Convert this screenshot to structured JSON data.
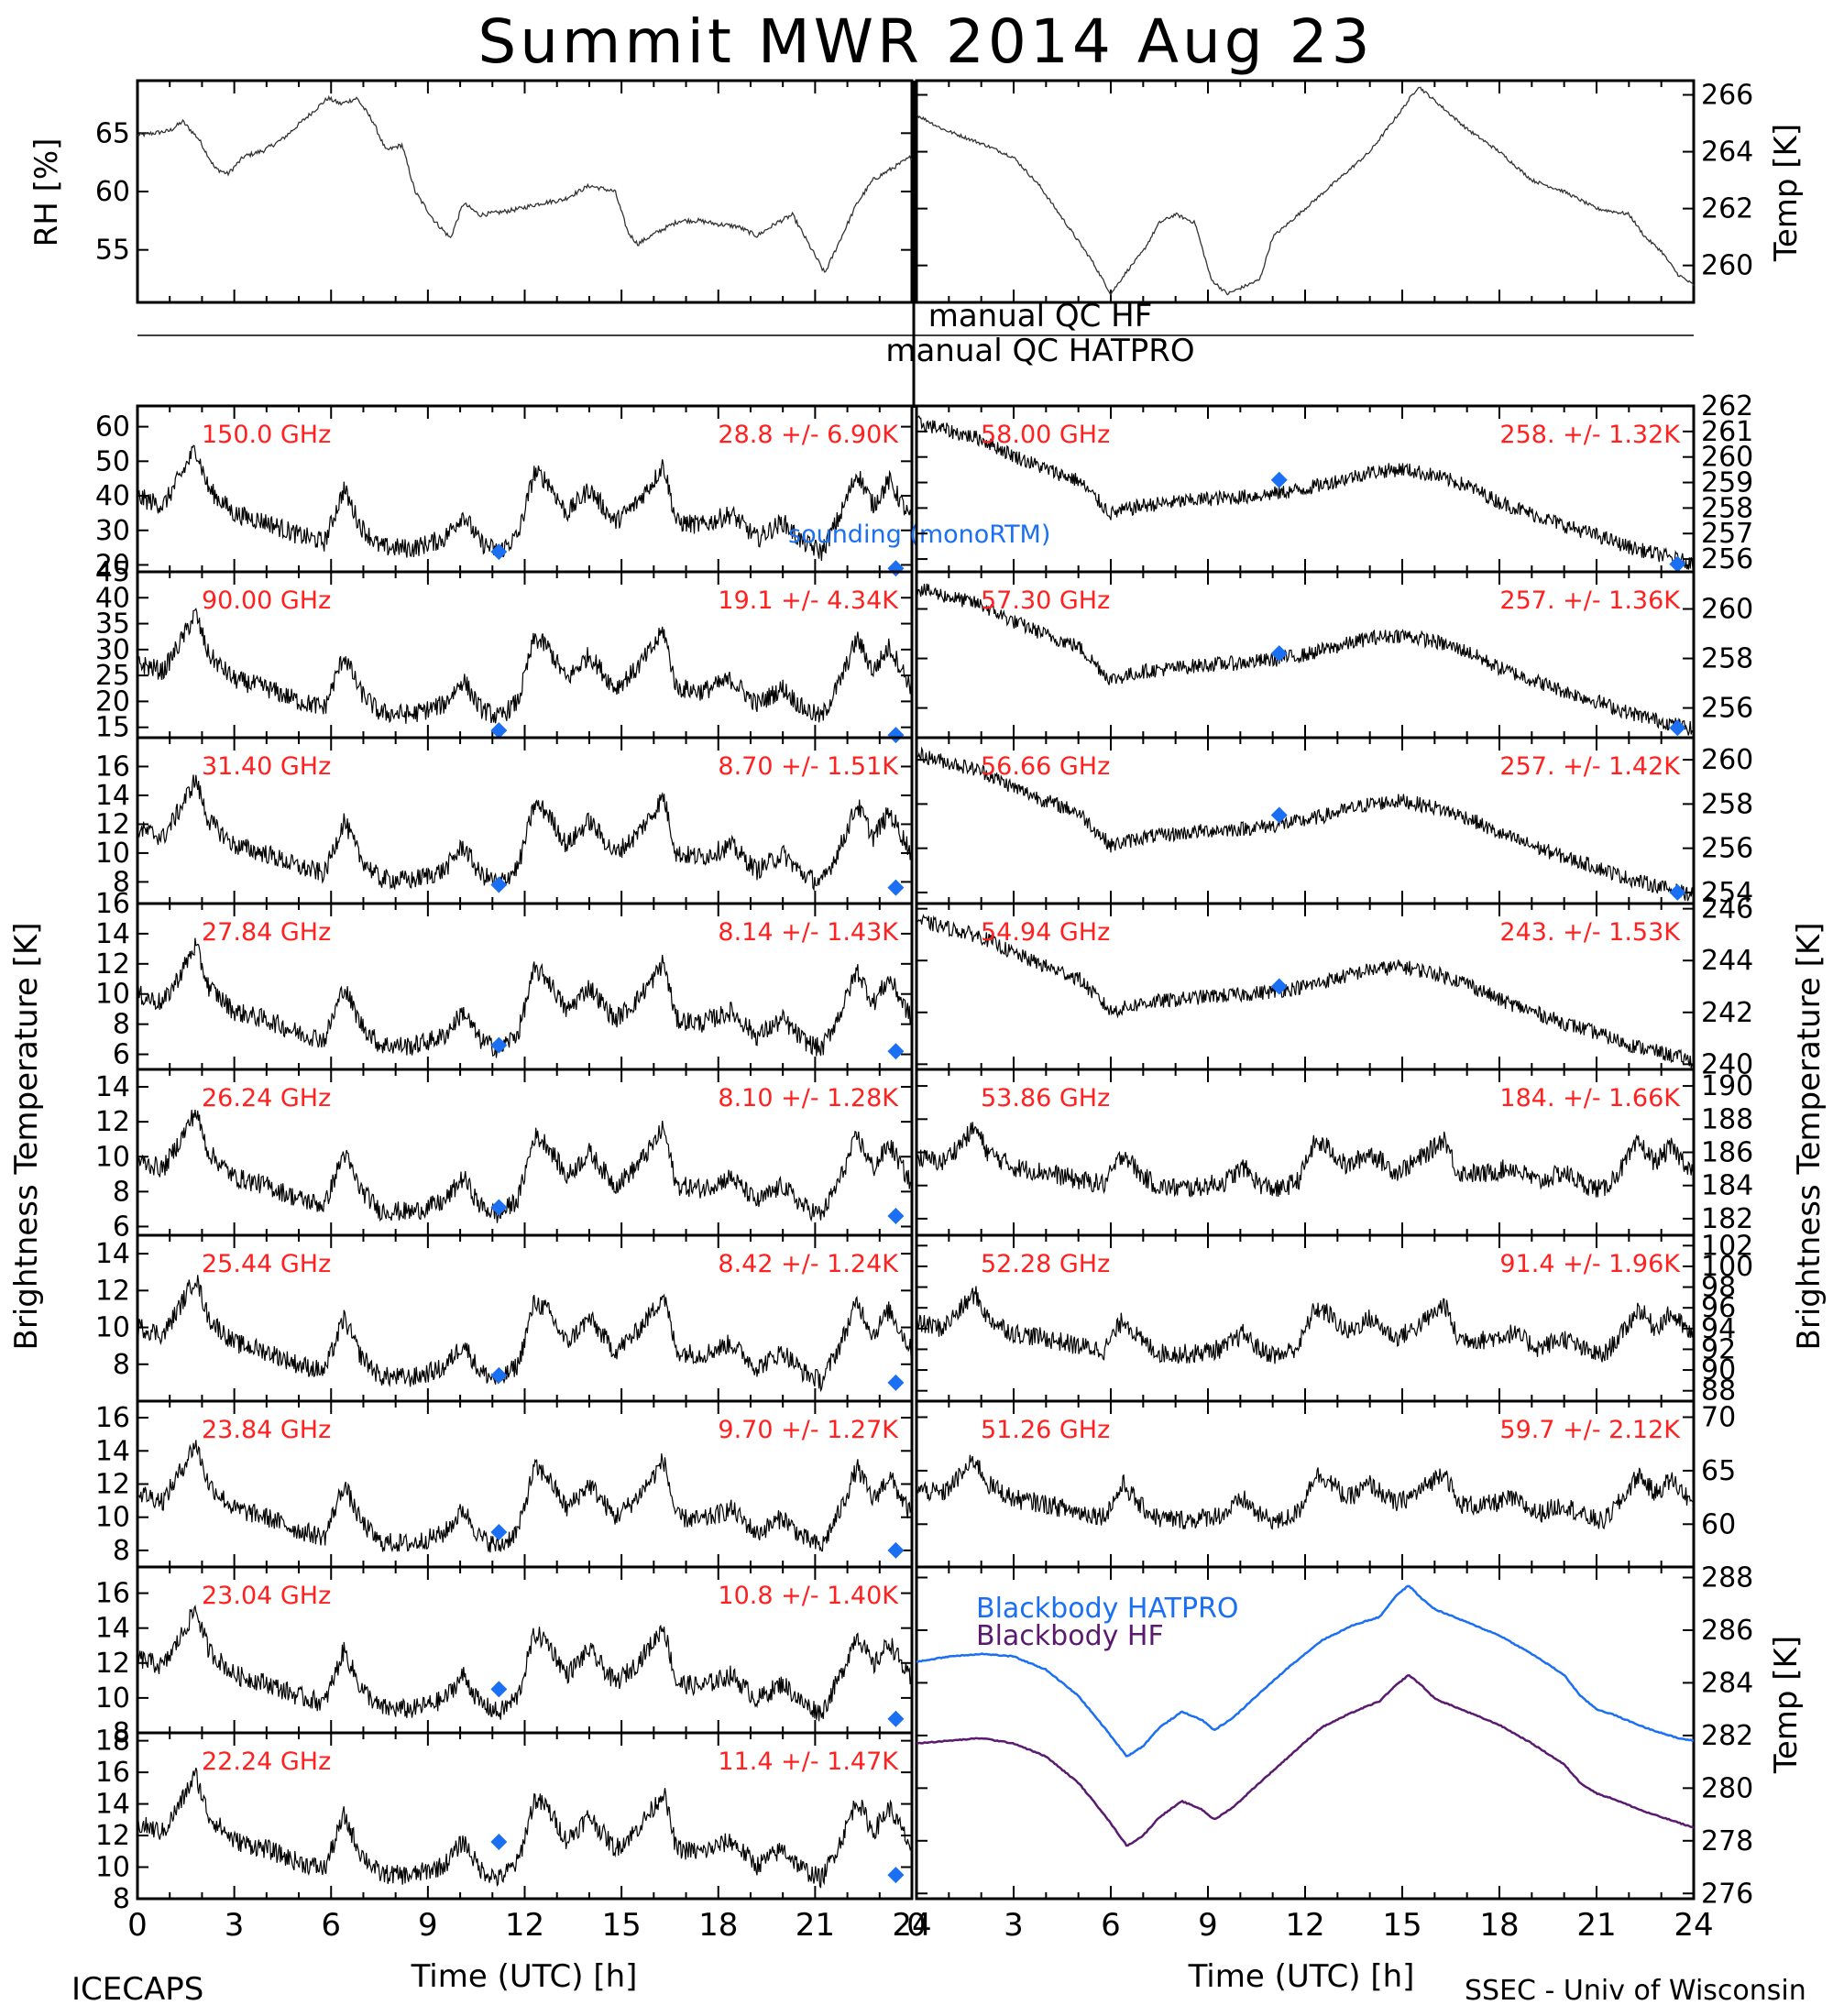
{
  "title": "Summit MWR 2014 Aug 23",
  "x_ticks": [
    0,
    3,
    6,
    9,
    12,
    15,
    18,
    21,
    24
  ],
  "x_label": "Time (UTC) [h]",
  "footer_left": "ICECAPS",
  "footer_right": "SSEC - Univ of Wisconsin",
  "left_ylabel": "Brightness Temperature [K]",
  "right_ylabel": "Brightness Temperature [K]",
  "qc": {
    "hf": "manual QC HF",
    "hatpro": "manual QC HATPRO"
  },
  "colors": {
    "trace": "#000000",
    "label": "#ff2020",
    "sounding": "#1a6ff2",
    "bb_hatpro": "#1a6ff2",
    "bb_hf": "#5a1a6e"
  },
  "chart_data": [
    {
      "name": "rh",
      "type": "line",
      "ylabel": "RH [%]",
      "ylim": [
        50.5,
        69.5
      ],
      "yticks": [
        55,
        60,
        65
      ],
      "x": [
        0,
        1,
        1.4,
        1.9,
        2.4,
        2.8,
        3.3,
        3.9,
        4.5,
        5.1,
        5.5,
        5.9,
        6.3,
        6.8,
        7.3,
        7.7,
        8.2,
        8.6,
        9.2,
        9.7,
        10.1,
        10.6,
        11.2,
        11.8,
        12.5,
        13.2,
        14,
        14.8,
        15.2,
        15.5,
        16.1,
        16.8,
        17.4,
        18,
        18.6,
        19.2,
        19.8,
        20.3,
        20.9,
        21.3,
        21.8,
        22.3,
        22.8,
        23.4,
        24
      ],
      "y": [
        64.8,
        65.2,
        66,
        64.5,
        62,
        61.5,
        63,
        63.5,
        64.5,
        66,
        67,
        68,
        67.5,
        68,
        66,
        63.5,
        64,
        60,
        57.5,
        56,
        59,
        58,
        58.2,
        58.5,
        59,
        59.3,
        60.5,
        60,
        56.5,
        55.5,
        56.5,
        57.5,
        57.5,
        57.2,
        57,
        56.2,
        57.3,
        58,
        55,
        53,
        56,
        59,
        61,
        62,
        63
      ]
    },
    {
      "name": "tair",
      "type": "line",
      "ylabel": "Temp [K]",
      "ylim": [
        258.7,
        266.5
      ],
      "yticks": [
        260,
        262,
        264,
        266
      ],
      "x": [
        0,
        0.8,
        1.5,
        2.2,
        3,
        3.8,
        4.6,
        5.4,
        6,
        6.5,
        7,
        7.5,
        8,
        8.6,
        9.1,
        9.6,
        10,
        10.6,
        11,
        12,
        13,
        14,
        15,
        15.5,
        16,
        17,
        18,
        19,
        20,
        21,
        22,
        22.5,
        23,
        23.5,
        24
      ],
      "y": [
        265.3,
        264.8,
        264.5,
        264.2,
        263.8,
        262.8,
        261.5,
        260.2,
        259,
        259.8,
        260.5,
        261.5,
        261.8,
        261.5,
        259.5,
        259,
        259.2,
        259.5,
        261,
        262,
        263,
        264,
        265.5,
        266.3,
        265.8,
        264.8,
        264,
        263,
        262.6,
        262,
        261.8,
        261,
        260.5,
        259.7,
        259.3
      ]
    },
    {
      "name": "150.0 GHz",
      "side": "left",
      "type": "line",
      "ylim": [
        18,
        66
      ],
      "yticks": [
        20,
        30,
        40,
        50,
        60
      ],
      "mean_label": "28.8 +/-  6.90K",
      "sounding": [
        [
          11.2,
          23.8
        ],
        [
          23.5,
          19.0
        ]
      ]
    },
    {
      "name": "90.00 GHz",
      "side": "left",
      "type": "line",
      "ylim": [
        13,
        45
      ],
      "yticks": [
        15,
        20,
        25,
        30,
        35,
        40,
        45
      ],
      "mean_label": "19.1 +/-  4.34K",
      "sounding": [
        [
          11.2,
          14.4
        ],
        [
          23.5,
          13.5
        ]
      ]
    },
    {
      "name": "31.40 GHz",
      "side": "left",
      "type": "line",
      "ylim": [
        6.5,
        18
      ],
      "yticks": [
        8,
        10,
        12,
        14,
        16
      ],
      "mean_label": "8.70 +/- 1.51K",
      "sounding": [
        [
          11.2,
          7.8
        ],
        [
          23.5,
          7.6
        ]
      ]
    },
    {
      "name": "27.84 GHz",
      "side": "left",
      "type": "line",
      "ylim": [
        5,
        16
      ],
      "yticks": [
        6,
        8,
        10,
        12,
        14,
        16
      ],
      "mean_label": "8.14 +/- 1.43K",
      "sounding": [
        [
          11.2,
          6.6
        ],
        [
          23.5,
          6.2
        ]
      ]
    },
    {
      "name": "26.24 GHz",
      "side": "left",
      "type": "line",
      "ylim": [
        5.5,
        15
      ],
      "yticks": [
        6,
        8,
        10,
        12,
        14
      ],
      "mean_label": "8.10 +/- 1.28K",
      "sounding": [
        [
          11.2,
          7.1
        ],
        [
          23.5,
          6.6
        ]
      ]
    },
    {
      "name": "25.44 GHz",
      "side": "left",
      "type": "line",
      "ylim": [
        6,
        15
      ],
      "yticks": [
        8,
        10,
        12,
        14
      ],
      "mean_label": "8.42 +/- 1.24K",
      "sounding": [
        [
          11.2,
          7.4
        ],
        [
          23.5,
          7.0
        ]
      ]
    },
    {
      "name": "23.84 GHz",
      "side": "left",
      "type": "line",
      "ylim": [
        7,
        17
      ],
      "yticks": [
        8,
        10,
        12,
        14,
        16
      ],
      "mean_label": "9.70 +/- 1.27K",
      "sounding": [
        [
          11.2,
          9.1
        ],
        [
          23.5,
          8.0
        ]
      ]
    },
    {
      "name": "23.04 GHz",
      "side": "left",
      "type": "line",
      "ylim": [
        8,
        17.5
      ],
      "yticks": [
        8,
        10,
        12,
        14,
        16
      ],
      "mean_label": "10.8 +/- 1.40K",
      "sounding": [
        [
          11.2,
          10.5
        ],
        [
          23.5,
          8.8
        ]
      ]
    },
    {
      "name": "22.24 GHz",
      "side": "left",
      "type": "line",
      "ylim": [
        8,
        18.5
      ],
      "yticks": [
        8,
        10,
        12,
        14,
        16,
        18
      ],
      "mean_label": "11.4 +/- 1.47K",
      "sounding": [
        [
          11.2,
          11.6
        ],
        [
          23.5,
          9.5
        ]
      ]
    },
    {
      "name": "58.00 GHz",
      "side": "right",
      "type": "line",
      "ylim": [
        255.5,
        262
      ],
      "yticks": [
        256,
        257,
        258,
        259,
        260,
        261,
        262
      ],
      "mean_label": "258. +/- 1.32K",
      "sounding": [
        [
          11.2,
          259.1
        ],
        [
          23.5,
          255.8
        ]
      ]
    },
    {
      "name": "57.30 GHz",
      "side": "right",
      "type": "line",
      "ylim": [
        254.8,
        261.5
      ],
      "yticks": [
        256,
        258,
        260
      ],
      "mean_label": "257. +/- 1.36K",
      "sounding": [
        [
          11.2,
          258.2
        ],
        [
          23.5,
          255.2
        ]
      ]
    },
    {
      "name": "56.66 GHz",
      "side": "right",
      "type": "line",
      "ylim": [
        253.5,
        261
      ],
      "yticks": [
        254,
        256,
        258,
        260
      ],
      "mean_label": "257. +/- 1.42K",
      "sounding": [
        [
          11.2,
          257.5
        ],
        [
          23.5,
          254
        ]
      ]
    },
    {
      "name": "54.94 GHz",
      "side": "right",
      "type": "line",
      "ylim": [
        239.8,
        246.2
      ],
      "yticks": [
        240,
        242,
        244,
        246
      ],
      "mean_label": "243. +/- 1.53K",
      "sounding": [
        [
          11.2,
          243.0
        ]
      ]
    },
    {
      "name": "53.86 GHz",
      "side": "right",
      "type": "line",
      "ylim": [
        181,
        191
      ],
      "yticks": [
        182,
        184,
        186,
        188,
        190
      ],
      "mean_label": "184. +/- 1.66K",
      "sounding": []
    },
    {
      "name": "52.28 GHz",
      "side": "right",
      "type": "line",
      "ylim": [
        87,
        103
      ],
      "yticks": [
        88,
        90,
        92,
        94,
        96,
        98,
        100,
        102
      ],
      "mean_label": "91.4 +/- 1.96K",
      "sounding": []
    },
    {
      "name": "51.26 GHz",
      "side": "right",
      "type": "line",
      "ylim": [
        56,
        71.5
      ],
      "yticks": [
        60,
        65,
        70
      ],
      "mean_label": "59.7 +/- 2.12K",
      "sounding": []
    },
    {
      "name": "blackbody",
      "type": "line",
      "ylabel": "Temp [K]",
      "ylim": [
        275.8,
        288.4
      ],
      "yticks": [
        276,
        278,
        280,
        282,
        284,
        286,
        288
      ],
      "series": [
        {
          "name": "Blackbody HATPRO",
          "x": [
            0,
            1,
            2,
            3,
            4,
            5,
            5.8,
            6.5,
            7,
            7.5,
            8.2,
            8.8,
            9.2,
            9.8,
            10.5,
            11.5,
            12.5,
            13.5,
            14.3,
            14.8,
            15.2,
            15.6,
            16,
            17,
            18,
            19,
            20,
            20.5,
            21,
            21.5,
            22.5,
            23.5,
            24
          ],
          "y": [
            284.8,
            285.0,
            285.1,
            285.0,
            284.5,
            283.5,
            282.3,
            281.2,
            281.6,
            282.3,
            282.9,
            282.6,
            282.2,
            282.7,
            283.5,
            284.6,
            285.6,
            286.2,
            286.5,
            287.3,
            287.7,
            287.2,
            286.8,
            286.3,
            285.8,
            285.1,
            284.3,
            283.5,
            283.0,
            282.8,
            282.3,
            281.9,
            281.8
          ]
        },
        {
          "name": "Blackbody HF",
          "x": [
            0,
            1,
            2,
            3,
            4,
            5,
            5.8,
            6.5,
            7,
            7.5,
            8.2,
            8.8,
            9.2,
            9.8,
            10.5,
            11.5,
            12.5,
            13.5,
            14.3,
            14.8,
            15.2,
            15.6,
            16,
            17,
            18,
            19,
            20,
            20.5,
            21,
            21.5,
            22.5,
            23.5,
            24
          ],
          "y": [
            281.7,
            281.8,
            281.9,
            281.7,
            281.2,
            280.2,
            279.0,
            277.8,
            278.2,
            278.9,
            279.5,
            279.2,
            278.8,
            279.3,
            280.1,
            281.2,
            282.3,
            282.9,
            283.3,
            283.9,
            284.3,
            283.9,
            283.4,
            282.9,
            282.4,
            281.7,
            280.9,
            280.2,
            279.8,
            279.6,
            279.1,
            278.7,
            278.5
          ]
        }
      ]
    }
  ]
}
